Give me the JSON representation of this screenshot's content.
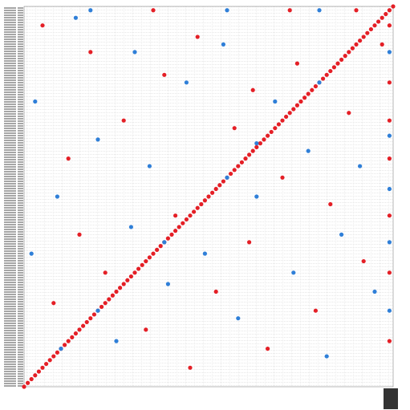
{
  "chart_data": {
    "type": "scatter",
    "xlim": [
      0,
      100
    ],
    "ylim": [
      0,
      100
    ],
    "series": [
      {
        "color": "#e41f26",
        "x": [
          0,
          1,
          2,
          3,
          4,
          5,
          6,
          7,
          8,
          9,
          10,
          11,
          12,
          13,
          14,
          15,
          16,
          17,
          18,
          19,
          20,
          21,
          22,
          23,
          24,
          25,
          26,
          27,
          28,
          29,
          30,
          31,
          32,
          33,
          34,
          35,
          36,
          37,
          38,
          39,
          40,
          41,
          42,
          43,
          44,
          45,
          46,
          47,
          48,
          49,
          50,
          51,
          52,
          53,
          54,
          55,
          56,
          57,
          58,
          59,
          60,
          61,
          62,
          63,
          64,
          65,
          66,
          67,
          68,
          69,
          70,
          71,
          72,
          73,
          74,
          75,
          76,
          77,
          78,
          79,
          80,
          81,
          82,
          83,
          84,
          85,
          86,
          87,
          88,
          89,
          90,
          91,
          92,
          93,
          94,
          95,
          96,
          97,
          98,
          99,
          100,
          5,
          12,
          18,
          22,
          27,
          33,
          38,
          41,
          47,
          52,
          57,
          61,
          66,
          70,
          74,
          79,
          83,
          88,
          92,
          97,
          99,
          99,
          99,
          99,
          99,
          99,
          99,
          15,
          62,
          45,
          8,
          35,
          72,
          90
        ],
        "y": [
          0,
          1,
          2,
          3,
          4,
          5,
          6,
          7,
          8,
          9,
          10,
          11,
          12,
          13,
          14,
          15,
          16,
          17,
          18,
          19,
          20,
          21,
          22,
          23,
          24,
          25,
          26,
          27,
          28,
          29,
          30,
          31,
          32,
          33,
          34,
          35,
          36,
          37,
          38,
          39,
          40,
          41,
          42,
          43,
          44,
          45,
          46,
          47,
          48,
          49,
          50,
          51,
          52,
          53,
          54,
          55,
          56,
          57,
          58,
          59,
          60,
          61,
          62,
          63,
          64,
          65,
          66,
          67,
          68,
          69,
          70,
          71,
          72,
          73,
          74,
          75,
          76,
          77,
          78,
          79,
          80,
          81,
          82,
          83,
          84,
          85,
          86,
          87,
          88,
          89,
          90,
          91,
          92,
          93,
          94,
          95,
          96,
          97,
          98,
          99,
          100,
          95,
          60,
          88,
          30,
          70,
          15,
          82,
          45,
          92,
          25,
          68,
          38,
          10,
          55,
          85,
          20,
          48,
          72,
          33,
          90,
          80,
          60,
          45,
          30,
          12,
          95,
          70,
          40,
          78,
          5,
          22,
          99,
          99,
          99
        ]
      },
      {
        "color": "#2f7fd8",
        "x": [
          10,
          20,
          38,
          55,
          63,
          80,
          3,
          9,
          14,
          20,
          25,
          29,
          34,
          39,
          44,
          49,
          54,
          58,
          63,
          68,
          73,
          77,
          82,
          86,
          91,
          95,
          99,
          99,
          99,
          99,
          99,
          18,
          55,
          80,
          2,
          30
        ],
        "y": [
          10,
          20,
          38,
          55,
          64,
          80,
          75,
          50,
          97,
          65,
          12,
          42,
          58,
          27,
          80,
          35,
          90,
          18,
          50,
          75,
          30,
          62,
          8,
          40,
          58,
          25,
          88,
          52,
          38,
          20,
          66,
          99,
          99,
          99,
          35,
          88
        ]
      }
    ]
  }
}
